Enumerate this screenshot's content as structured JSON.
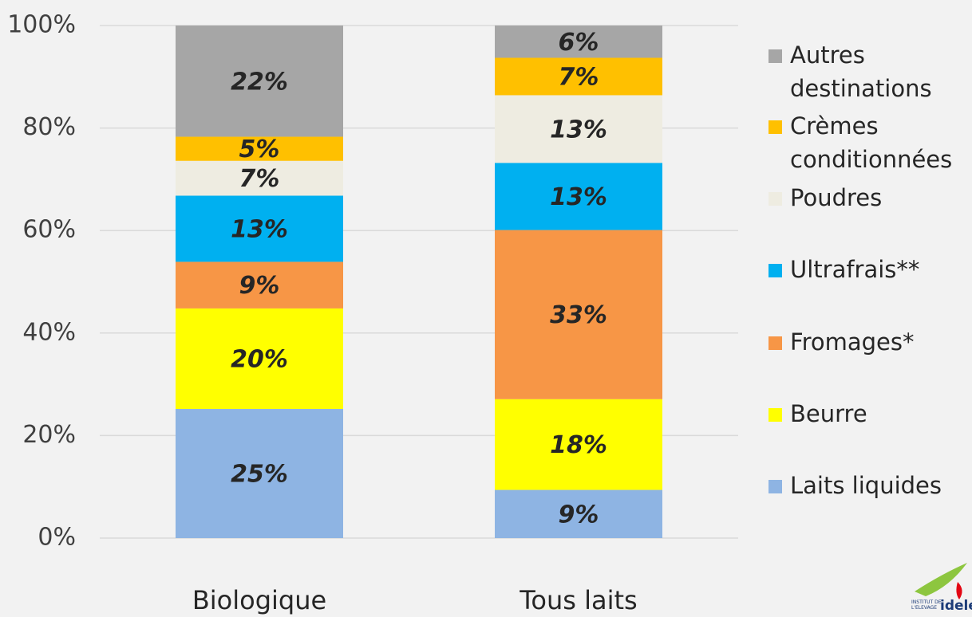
{
  "chart_data": {
    "type": "stacked_bar",
    "categories": [
      "Biologique",
      "Tous laits"
    ],
    "series": [
      {
        "name": "Laits liquides",
        "color": "#8eb4e3",
        "values": [
          25.2,
          9.4
        ],
        "value_labels": [
          "25%",
          "9%"
        ]
      },
      {
        "name": "Beurre",
        "color": "#ffff00",
        "values": [
          19.6,
          17.7
        ],
        "value_labels": [
          "20%",
          "18%"
        ]
      },
      {
        "name": "Fromages*",
        "color": "#f79646",
        "values": [
          9.1,
          33.0
        ],
        "value_labels": [
          "9%",
          "33%"
        ]
      },
      {
        "name": "Ultrafrais**",
        "color": "#00b0f0",
        "values": [
          12.9,
          13.1
        ],
        "value_labels": [
          "13%",
          "13%"
        ]
      },
      {
        "name": "Poudres",
        "color": "#eeece1",
        "values": [
          6.8,
          13.2
        ],
        "value_labels": [
          "7%",
          "13%"
        ]
      },
      {
        "name": "Crèmes conditionnées",
        "color": "#ffc000",
        "values": [
          4.7,
          7.3
        ],
        "value_labels": [
          "5%",
          "7%"
        ]
      },
      {
        "name": "Autres destinations",
        "color": "#a6a6a6",
        "values": [
          21.7,
          6.3
        ],
        "value_labels": [
          "22%",
          "6%"
        ]
      }
    ],
    "ylim": [
      0,
      100
    ],
    "yticks": [
      {
        "value": 0,
        "label": "0%"
      },
      {
        "value": 20,
        "label": "20%"
      },
      {
        "value": 40,
        "label": "40%"
      },
      {
        "value": 60,
        "label": "60%"
      },
      {
        "value": 80,
        "label": "80%"
      },
      {
        "value": 100,
        "label": "100%"
      }
    ],
    "grid": true
  },
  "logo": {
    "line1": "INSTITUT DE L'ELEVAGE",
    "line2": "idele"
  }
}
